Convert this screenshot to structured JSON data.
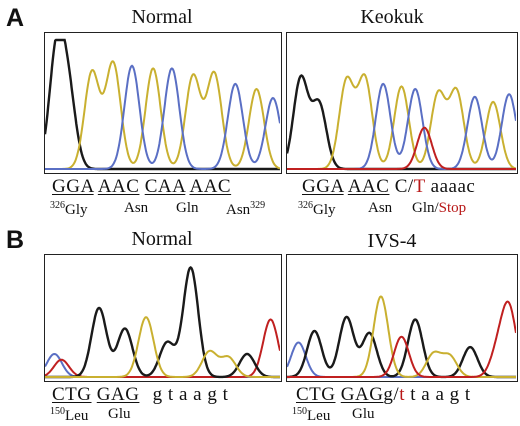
{
  "panels": [
    {
      "letter": "A",
      "items": [
        {
          "title": "Normal",
          "seq": [
            {
              "t": "GGA",
              "underline": true
            },
            {
              "t": "AAC",
              "underline": true
            },
            {
              "t": "CAA",
              "underline": true
            },
            {
              "t": "AAC",
              "underline": true
            }
          ],
          "labels": [
            {
              "sup": "326",
              "text": "Gly"
            },
            {
              "text": "Asn"
            },
            {
              "text": "Gln"
            },
            {
              "text": "Asn",
              "sup_after": "329"
            }
          ]
        },
        {
          "title": "Keokuk",
          "seq": [
            {
              "t": "GGA",
              "underline": true
            },
            {
              "t": "AAC",
              "underline": true
            },
            {
              "t": "C/",
              "underline": false
            },
            {
              "t": "T",
              "red": true
            },
            {
              "t": "aaaac",
              "underline": false
            }
          ],
          "labels": [
            {
              "sup": "326",
              "text": "Gly"
            },
            {
              "text": "Asn"
            },
            {
              "text": "Gln/"
            },
            {
              "text": "Stop",
              "red": true
            }
          ]
        }
      ]
    },
    {
      "letter": "B",
      "items": [
        {
          "title": "Normal",
          "seq": [
            {
              "t": "CTG",
              "underline": true
            },
            {
              "t": "GAG",
              "underline": true
            },
            {
              "t": "g t a a g t",
              "underline": false
            }
          ],
          "labels": [
            {
              "sup": "150",
              "text": "Leu"
            },
            {
              "text": "Glu"
            }
          ]
        },
        {
          "title": "IVS-4",
          "seq": [
            {
              "t": "CTG",
              "underline": true
            },
            {
              "t": "GAG",
              "underline": true
            },
            {
              "t": "g/",
              "underline": false
            },
            {
              "t": "t",
              "red": true
            },
            {
              "t": " t a a g t",
              "underline": false
            }
          ],
          "labels": [
            {
              "sup": "150",
              "text": "Leu"
            },
            {
              "text": "Glu"
            }
          ]
        }
      ]
    }
  ],
  "colors": {
    "black": "#1a1a1a",
    "yellow": "#c9b030",
    "blue": "#5a6fc4",
    "red": "#c02020"
  },
  "traces": {
    "A0": [
      [
        "black",
        0.05,
        0.9
      ],
      [
        "black",
        0.1,
        0.55
      ],
      [
        "yellow",
        0.2,
        0.75
      ],
      [
        "yellow",
        0.29,
        0.82
      ],
      [
        "blue",
        0.37,
        0.8
      ],
      [
        "yellow",
        0.46,
        0.78
      ],
      [
        "blue",
        0.54,
        0.78
      ],
      [
        "yellow",
        0.63,
        0.72
      ],
      [
        "yellow",
        0.72,
        0.74
      ],
      [
        "blue",
        0.81,
        0.66
      ],
      [
        "yellow",
        0.9,
        0.62
      ],
      [
        "blue",
        0.97,
        0.55
      ]
    ],
    "A1": [
      [
        "black",
        0.06,
        0.7
      ],
      [
        "black",
        0.14,
        0.5
      ],
      [
        "yellow",
        0.26,
        0.68
      ],
      [
        "yellow",
        0.34,
        0.7
      ],
      [
        "blue",
        0.42,
        0.66
      ],
      [
        "yellow",
        0.5,
        0.64
      ],
      [
        "blue",
        0.56,
        0.62
      ],
      [
        "red",
        0.6,
        0.32
      ],
      [
        "yellow",
        0.66,
        0.58
      ],
      [
        "yellow",
        0.74,
        0.6
      ],
      [
        "blue",
        0.82,
        0.56
      ],
      [
        "yellow",
        0.9,
        0.52
      ],
      [
        "blue",
        0.97,
        0.58
      ]
    ],
    "B0": [
      [
        "blue",
        0.04,
        0.2
      ],
      [
        "red",
        0.07,
        0.15
      ],
      [
        "black",
        0.23,
        0.6
      ],
      [
        "black",
        0.34,
        0.42
      ],
      [
        "yellow",
        0.43,
        0.52
      ],
      [
        "black",
        0.52,
        0.3
      ],
      [
        "black",
        0.62,
        0.95
      ],
      [
        "yellow",
        0.7,
        0.22
      ],
      [
        "yellow",
        0.78,
        0.17
      ],
      [
        "black",
        0.86,
        0.2
      ],
      [
        "red",
        0.96,
        0.5
      ]
    ],
    "B1": [
      [
        "blue",
        0.05,
        0.3
      ],
      [
        "black",
        0.12,
        0.4
      ],
      [
        "black",
        0.26,
        0.52
      ],
      [
        "black",
        0.36,
        0.38
      ],
      [
        "yellow",
        0.41,
        0.7
      ],
      [
        "red",
        0.5,
        0.35
      ],
      [
        "black",
        0.56,
        0.5
      ],
      [
        "yellow",
        0.64,
        0.2
      ],
      [
        "yellow",
        0.71,
        0.18
      ],
      [
        "black",
        0.8,
        0.26
      ],
      [
        "red",
        0.92,
        0.22
      ],
      [
        "red",
        0.97,
        0.58
      ]
    ]
  }
}
